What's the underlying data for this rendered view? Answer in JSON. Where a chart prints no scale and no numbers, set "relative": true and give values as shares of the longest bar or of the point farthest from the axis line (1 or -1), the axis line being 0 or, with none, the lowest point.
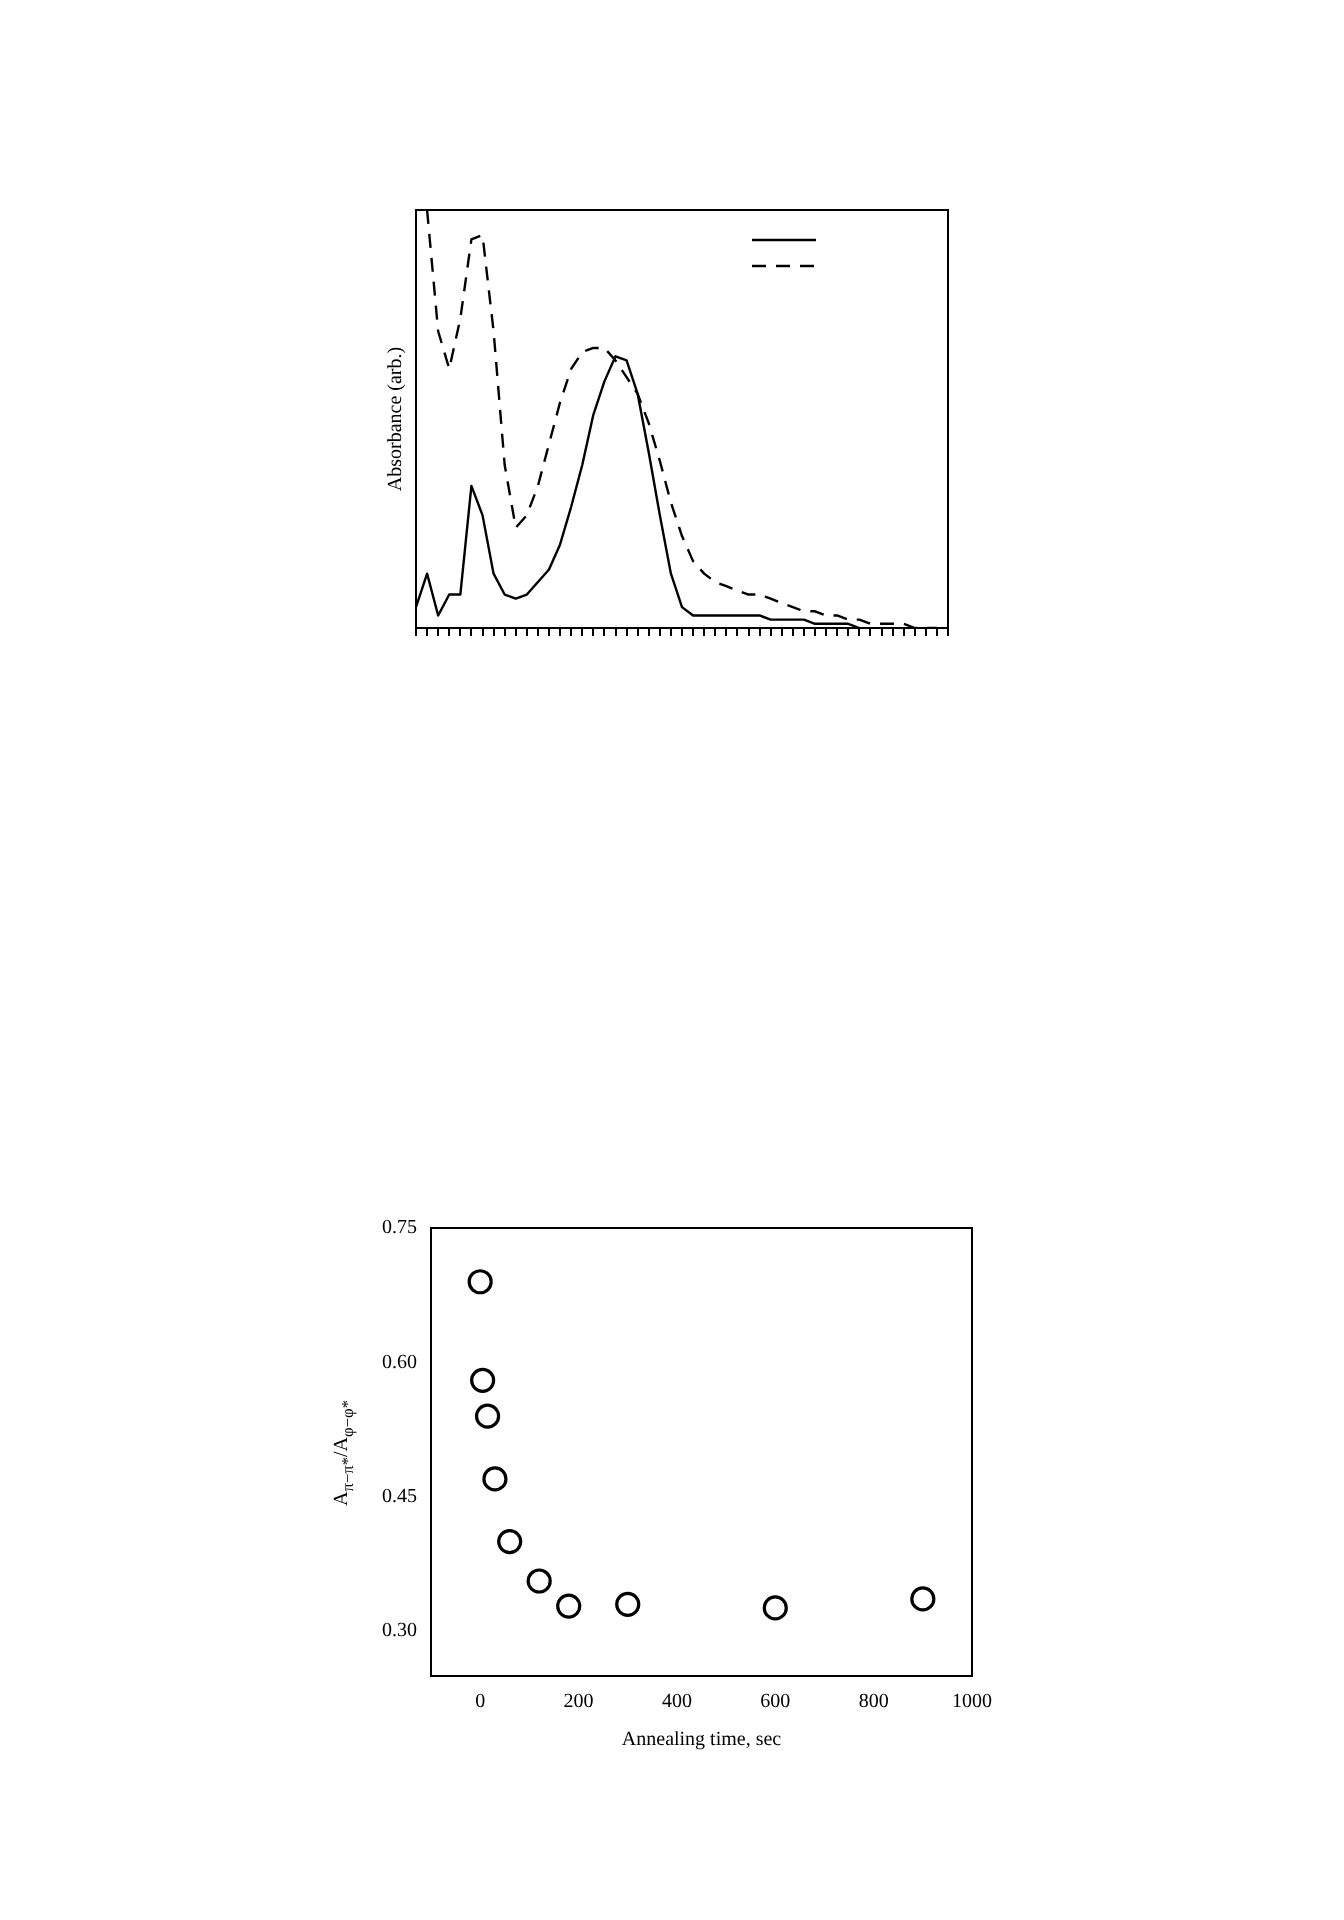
{
  "chart_data": [
    {
      "type": "line",
      "ylabel": "Absorbance (arb.)",
      "relative": true,
      "grid": false,
      "categories": [
        null,
        null,
        null,
        null,
        null,
        null,
        null,
        null,
        null,
        null,
        null,
        null,
        null,
        null,
        null,
        null,
        null,
        null,
        null,
        null,
        null,
        null,
        null,
        null,
        null,
        null,
        null,
        null,
        null,
        null,
        null,
        null,
        null,
        null,
        null,
        null,
        null,
        null,
        null,
        null,
        null,
        null,
        null,
        null,
        null,
        null,
        null,
        null,
        null
      ],
      "series": [
        {
          "color": "#000000",
          "line_style": "solid",
          "values": [
            0.05,
            0.13,
            0.03,
            0.08,
            0.08,
            0.34,
            0.27,
            0.13,
            0.08,
            0.07,
            0.08,
            0.11,
            0.14,
            0.2,
            0.29,
            0.39,
            0.51,
            0.59,
            0.65,
            0.64,
            0.56,
            0.42,
            0.27,
            0.13,
            0.05,
            0.03,
            0.03,
            0.03,
            0.03,
            0.03,
            0.03,
            0.03,
            0.02,
            0.02,
            0.02,
            0.02,
            0.01,
            0.01,
            0.01,
            0.01,
            0.0,
            null,
            null,
            null,
            null,
            null,
            null,
            null,
            null
          ]
        },
        {
          "color": "#000000",
          "line_style": "dashed",
          "values": [
            null,
            1.0,
            0.71,
            0.62,
            0.74,
            0.93,
            0.94,
            0.71,
            0.39,
            0.24,
            0.27,
            0.34,
            0.44,
            0.54,
            0.62,
            0.66,
            0.67,
            0.67,
            0.64,
            0.6,
            0.56,
            0.49,
            0.4,
            0.3,
            0.22,
            0.16,
            0.13,
            0.11,
            0.1,
            0.09,
            0.08,
            0.08,
            0.07,
            0.06,
            0.05,
            0.04,
            0.04,
            0.03,
            0.03,
            0.02,
            0.02,
            0.01,
            0.01,
            0.01,
            0.01,
            0.0,
            0.0,
            0.0,
            null
          ]
        }
      ]
    },
    {
      "type": "scatter",
      "xlabel": "Annealing time, sec",
      "ylabel": "A$_{π−π*}$/A$_{φ−φ*}$",
      "grid": false,
      "marker": "circle",
      "x": [
        0,
        5,
        15,
        30,
        60,
        120,
        180,
        300,
        600,
        900
      ],
      "values": [
        0.69,
        0.58,
        0.54,
        0.47,
        0.4,
        0.356,
        0.328,
        0.33,
        0.326,
        0.336
      ],
      "color": "#000000",
      "xlim": [
        -100,
        1000
      ],
      "xticks": [
        0,
        200,
        400,
        600,
        800,
        1000
      ],
      "ylim": [
        0.25,
        0.75
      ],
      "yticks": [
        {
          "value": 0.3,
          "label": "0.30"
        },
        0.45,
        {
          "value": 0.6,
          "label": "0.60"
        },
        0.75
      ]
    }
  ]
}
